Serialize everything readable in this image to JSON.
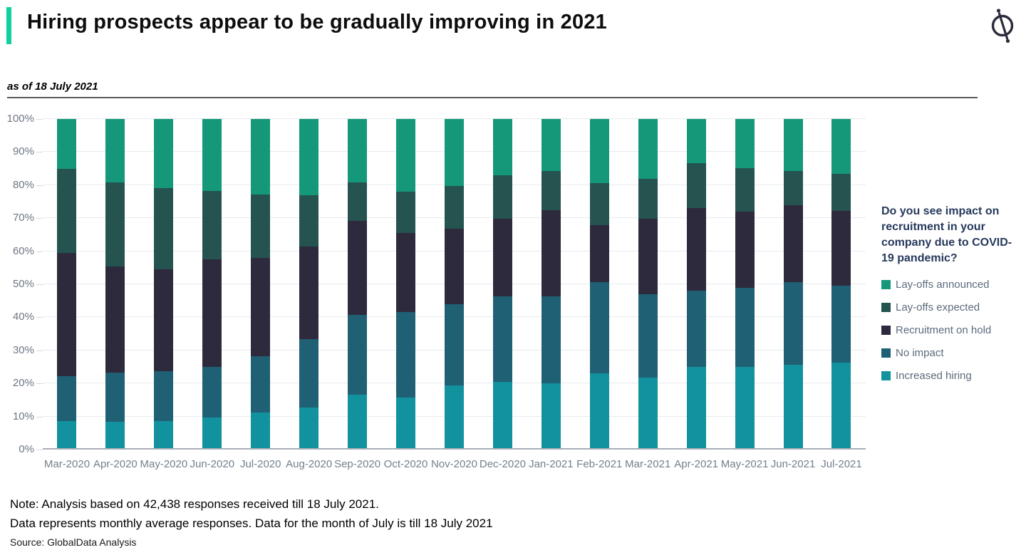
{
  "header": {
    "title": "Hiring prospects appear to be gradually improving in 2021"
  },
  "subtitle": "as of 18 July 2021",
  "legend": {
    "question": "Do you see impact on recruitment in your company due to COVID-19 pandemic?"
  },
  "notes": {
    "line1": "Note: Analysis based on 42,438 responses received till 18 July 2021.",
    "line2": "Data represents monthly average responses. Data for the month of July is till 18 July 2021",
    "source": "Source: GlobalData Analysis"
  },
  "colors": {
    "accent": "#0ed0a0",
    "logo": "#2b2b3e",
    "grid": "#e7eaee",
    "axis": "#a9aeb5",
    "y_label": "#6d7683",
    "x_label": "#73808c",
    "legend_question": "#26395c",
    "legend_label": "#5d6b7d"
  },
  "chart_data": {
    "type": "bar",
    "variant": "stacked-100-percent",
    "title": "Do you see impact on recruitment in your company due to COVID-19 pandemic?",
    "xlabel": "",
    "ylabel": "",
    "ylim": [
      0,
      100
    ],
    "y_tick_step": 10,
    "y_tick_suffix": "%",
    "grid": true,
    "legend_position": "right",
    "categories": [
      "Mar-2020",
      "Apr-2020",
      "May-2020",
      "Jun-2020",
      "Jul-2020",
      "Aug-2020",
      "Sep-2020",
      "Oct-2020",
      "Nov-2020",
      "Dec-2020",
      "Jan-2021",
      "Feb-2021",
      "Mar-2021",
      "Apr-2021",
      "May-2021",
      "Jun-2021",
      "Jul-2021"
    ],
    "series": [
      {
        "name": "Increased hiring",
        "color": "#12929e",
        "values": [
          8.7,
          8.4,
          8.6,
          9.6,
          11.3,
          12.7,
          16.7,
          15.7,
          19.4,
          20.4,
          20.1,
          23.1,
          21.7,
          25.1,
          24.9,
          25.6,
          26.2
        ]
      },
      {
        "name": "No impact",
        "color": "#1f6074",
        "values": [
          13.6,
          14.8,
          15.1,
          15.3,
          16.9,
          20.8,
          24.0,
          25.8,
          24.6,
          25.9,
          26.2,
          27.5,
          25.3,
          22.9,
          24.0,
          25.1,
          23.3
        ]
      },
      {
        "name": "Recruitment on hold",
        "color": "#2e2a3e",
        "values": [
          37.1,
          32.3,
          30.9,
          32.6,
          29.7,
          28.0,
          28.4,
          24.0,
          22.9,
          23.6,
          26.2,
          17.2,
          22.9,
          25.1,
          23.0,
          23.2,
          22.7
        ]
      },
      {
        "name": "Lay-offs expected",
        "color": "#255450",
        "values": [
          25.5,
          25.4,
          24.6,
          20.8,
          19.2,
          15.4,
          11.7,
          12.5,
          12.8,
          13.1,
          11.7,
          12.9,
          12.1,
          13.6,
          13.3,
          10.4,
          11.2
        ]
      },
      {
        "name": "Lay-offs announced",
        "color": "#15987a",
        "values": [
          15.1,
          19.1,
          20.8,
          21.7,
          22.9,
          23.1,
          19.2,
          22.0,
          20.3,
          17.0,
          15.8,
          19.3,
          18.0,
          13.3,
          14.8,
          15.7,
          16.6
        ]
      }
    ],
    "legend_order_top_to_bottom": [
      "Lay-offs announced",
      "Lay-offs expected",
      "Recruitment on hold",
      "No impact",
      "Increased hiring"
    ]
  }
}
